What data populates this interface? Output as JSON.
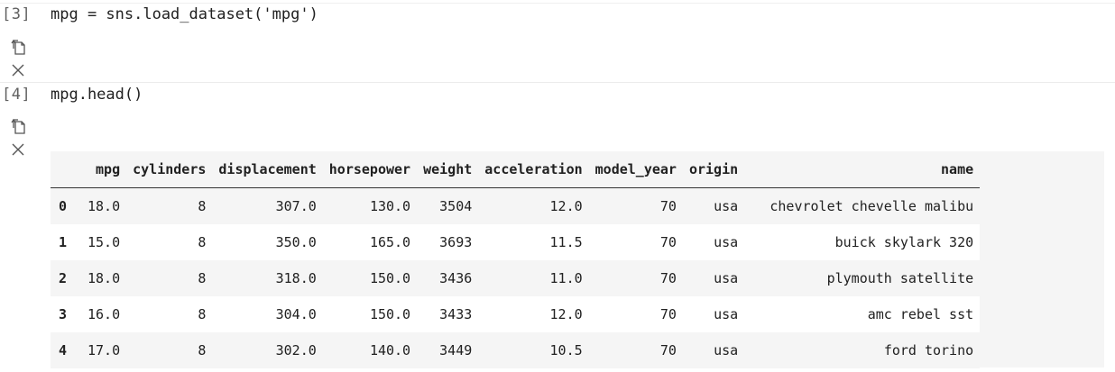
{
  "cells": [
    {
      "prompt": "[3]",
      "code": "mpg = sns.load_dataset('mpg')"
    },
    {
      "prompt": "[4]",
      "code": "mpg.head()"
    }
  ],
  "icons": {
    "copy": "copy-icon",
    "close": "close-icon"
  },
  "table": {
    "columns": [
      "",
      "mpg",
      "cylinders",
      "displacement",
      "horsepower",
      "weight",
      "acceleration",
      "model_year",
      "origin",
      "name"
    ],
    "rows": [
      [
        "0",
        "18.0",
        "8",
        "307.0",
        "130.0",
        "3504",
        "12.0",
        "70",
        "usa",
        "chevrolet chevelle malibu"
      ],
      [
        "1",
        "15.0",
        "8",
        "350.0",
        "165.0",
        "3693",
        "11.5",
        "70",
        "usa",
        "buick skylark 320"
      ],
      [
        "2",
        "18.0",
        "8",
        "318.0",
        "150.0",
        "3436",
        "11.0",
        "70",
        "usa",
        "plymouth satellite"
      ],
      [
        "3",
        "16.0",
        "8",
        "304.0",
        "150.0",
        "3433",
        "12.0",
        "70",
        "usa",
        "amc rebel sst"
      ],
      [
        "4",
        "17.0",
        "8",
        "302.0",
        "140.0",
        "3449",
        "10.5",
        "70",
        "usa",
        "ford torino"
      ]
    ]
  }
}
